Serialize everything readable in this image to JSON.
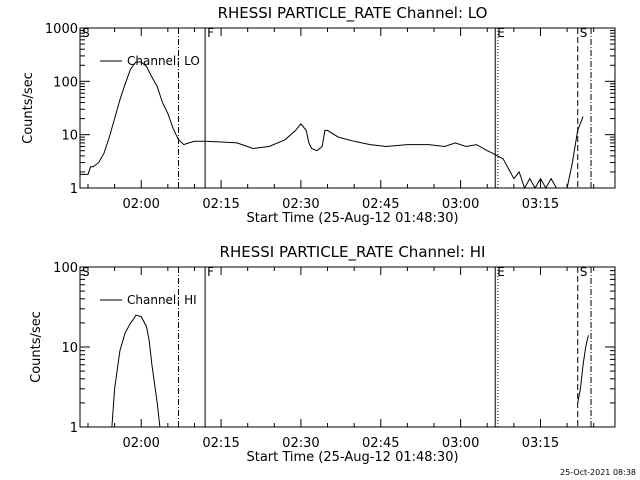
{
  "stamp": "25-Oct-2021 08:38",
  "chart_data": [
    {
      "type": "line",
      "title": "RHESSI PARTICLE_RATE Channel: LO",
      "xlabel": "Start Time (25-Aug-12 01:48:30)",
      "ylabel": "Counts/sec",
      "yscale": "log",
      "ylim": [
        1,
        1000
      ],
      "ytick_labels": [
        "1",
        "10",
        "100",
        "1000"
      ],
      "ytick_values": [
        1,
        10,
        100,
        1000
      ],
      "xlim": [
        "01:48:30",
        "03:29:00"
      ],
      "xtick_labels": [
        "02:00",
        "02:15",
        "02:30",
        "02:45",
        "03:00",
        "03:15"
      ],
      "xtick_values": [
        "02:00",
        "02:15",
        "02:30",
        "02:45",
        "03:00",
        "03:15"
      ],
      "legend": "top-left",
      "grid": false,
      "series": [
        {
          "name": "Channel: LO",
          "x": [
            "01:48:30",
            "01:50:00",
            "01:50:30",
            "01:51:00",
            "01:52:00",
            "01:53:00",
            "01:54:00",
            "01:55:00",
            "01:56:00",
            "01:57:00",
            "01:58:00",
            "01:59:00",
            "02:00:00",
            "02:01:00",
            "02:02:00",
            "02:03:00",
            "02:04:00",
            "02:05:00",
            "02:06:00",
            "02:07:00",
            "02:08:00",
            "02:09:00",
            "02:10:00",
            "02:12:00",
            "02:15:00",
            "02:18:00",
            "02:21:00",
            "02:24:00",
            "02:27:00",
            "02:29:00",
            "02:30:00",
            "02:31:00",
            "02:31:30",
            "02:32:00",
            "02:33:00",
            "02:34:00",
            "02:34:30",
            "02:35:00",
            "02:37:00",
            "02:40:00",
            "02:43:00",
            "02:46:00",
            "02:50:00",
            "02:54:00",
            "02:57:00",
            "02:59:00",
            "03:01:00",
            "03:03:00",
            "03:05:00",
            "03:06:00",
            "03:08:00",
            "03:10:00",
            "03:11:00",
            "03:12:00",
            "03:13:00",
            "03:14:00",
            "03:15:00",
            "03:16:00",
            "03:17:00",
            "03:18:00",
            "03:19:00",
            "03:20:00",
            "03:21:00",
            "03:22:00",
            "03:23:00"
          ],
          "y": [
            1.8,
            1.8,
            2.5,
            2.5,
            3,
            4.5,
            9,
            20,
            45,
            90,
            170,
            230,
            230,
            190,
            120,
            80,
            40,
            25,
            13,
            8,
            6.5,
            7,
            7.5,
            7.5,
            7.3,
            7,
            5.5,
            6,
            8,
            12,
            16,
            12,
            7,
            5.5,
            5,
            6,
            12,
            12,
            9,
            7.5,
            6.5,
            6,
            6.5,
            6.5,
            6,
            7,
            6,
            6.5,
            5,
            4.5,
            3.5,
            1.5,
            2,
            1,
            1.5,
            1,
            1.5,
            1,
            1.5,
            1,
            1,
            1,
            3,
            12,
            22
          ]
        }
      ],
      "markers": [
        {
          "label": "S",
          "x": "01:48:30",
          "style": "solid"
        },
        {
          "label": "",
          "x": "02:07:00",
          "style": "dash-dot"
        },
        {
          "label": "F",
          "x": "02:12:00",
          "style": "solid"
        },
        {
          "label": "E",
          "x": "03:06:30",
          "style": "solid"
        },
        {
          "label": "",
          "x": "03:07:00",
          "style": "dotted"
        },
        {
          "label": "S",
          "x": "03:22:00",
          "style": "dashed"
        },
        {
          "label": "",
          "x": "03:24:30",
          "style": "dash-dot"
        }
      ]
    },
    {
      "type": "line",
      "title": "RHESSI PARTICLE_RATE Channel: HI",
      "xlabel": "Start Time (25-Aug-12 01:48:30)",
      "ylabel": "Counts/sec",
      "yscale": "log",
      "ylim": [
        1,
        100
      ],
      "ytick_labels": [
        "1",
        "10",
        "100"
      ],
      "ytick_values": [
        1,
        10,
        100
      ],
      "xlim": [
        "01:48:30",
        "03:29:00"
      ],
      "xtick_labels": [
        "02:00",
        "02:15",
        "02:30",
        "02:45",
        "03:00",
        "03:15"
      ],
      "xtick_values": [
        "02:00",
        "02:15",
        "02:30",
        "02:45",
        "03:00",
        "03:15"
      ],
      "legend": "top-left",
      "grid": false,
      "series": [
        {
          "name": "Channel: HI",
          "x": [
            "01:54:30",
            "01:55:00",
            "01:56:00",
            "01:57:00",
            "01:58:00",
            "01:58:30",
            "01:59:00",
            "02:00:00",
            "02:01:00",
            "02:01:30",
            "02:02:00",
            "02:03:00",
            "02:03:30"
          ],
          "y": [
            1,
            3,
            9,
            15,
            20,
            22,
            25,
            24,
            18,
            12,
            6,
            2,
            1
          ]
        },
        {
          "name": "",
          "x": [
            "03:22:00",
            "03:22:30",
            "03:23:00",
            "03:23:30",
            "03:24:00"
          ],
          "y": [
            2,
            3,
            6,
            10,
            14
          ]
        }
      ],
      "markers": [
        {
          "label": "S",
          "x": "01:48:30",
          "style": "solid"
        },
        {
          "label": "",
          "x": "02:07:00",
          "style": "dash-dot"
        },
        {
          "label": "F",
          "x": "02:12:00",
          "style": "solid"
        },
        {
          "label": "E",
          "x": "03:06:30",
          "style": "solid"
        },
        {
          "label": "",
          "x": "03:07:00",
          "style": "dotted"
        },
        {
          "label": "S",
          "x": "03:22:00",
          "style": "dashed"
        },
        {
          "label": "",
          "x": "03:24:30",
          "style": "dash-dot"
        }
      ]
    }
  ]
}
